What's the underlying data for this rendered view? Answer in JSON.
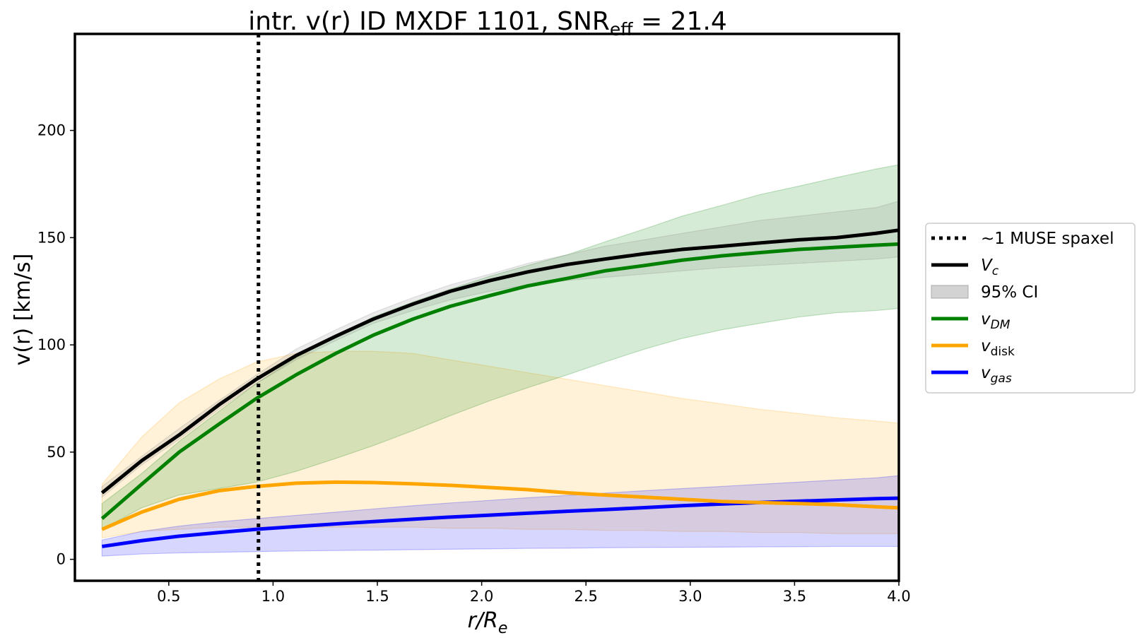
{
  "chart_data": {
    "type": "line",
    "title": {
      "main": "intr. v(r) ID MXDF 1101, SNR",
      "sub": "eff",
      "rest": " = 21.4"
    },
    "xlabel": {
      "main": "r/R",
      "sub": "e"
    },
    "ylabel": "v(r) [km/s]",
    "xlim": [
      0.05,
      4.0
    ],
    "ylim": [
      -10,
      245
    ],
    "xticks": [
      0.5,
      1.0,
      1.5,
      2.0,
      2.5,
      3.0,
      3.5,
      4.0
    ],
    "xtick_labels": [
      "0.5",
      "1.0",
      "1.5",
      "2.0",
      "2.5",
      "3.0",
      "3.5",
      "4.0"
    ],
    "yticks": [
      0,
      50,
      100,
      150,
      200
    ],
    "ytick_labels": [
      "0",
      "50",
      "100",
      "150",
      "200"
    ],
    "grid": false,
    "legend_position": "right-outside",
    "vline": {
      "x": 0.93,
      "style": "dotted",
      "color": "#000000"
    },
    "x": [
      0.18,
      0.37,
      0.55,
      0.74,
      0.92,
      1.11,
      1.3,
      1.48,
      1.67,
      1.85,
      2.04,
      2.22,
      2.41,
      2.59,
      2.78,
      2.96,
      3.15,
      3.33,
      3.52,
      3.7,
      3.89,
      4.0
    ],
    "series": [
      {
        "key": "vc",
        "name": {
          "main": "V",
          "sub": "c"
        },
        "color": "#000000",
        "values": [
          31,
          46,
          58,
          72,
          84,
          95,
          104,
          112,
          119,
          125,
          130,
          134,
          137.5,
          140,
          142.5,
          144.5,
          146,
          147.5,
          149,
          150,
          152,
          153.5
        ],
        "band_lower": [
          29,
          44,
          56,
          70,
          82,
          93,
          102,
          110,
          116,
          121,
          125,
          128,
          130,
          131.5,
          133,
          134.5,
          136,
          137,
          138,
          139,
          140,
          141
        ],
        "band_upper": [
          34,
          48,
          61,
          74,
          86,
          98,
          107,
          115,
          122,
          128,
          133,
          138,
          142,
          146,
          149,
          152,
          155,
          158,
          160,
          162,
          164,
          167
        ],
        "band_color": "#7f7f7f"
      },
      {
        "key": "vdm",
        "name": {
          "main": "v",
          "sub": "DM"
        },
        "color": "#008000",
        "values": [
          19,
          35,
          50,
          63,
          75,
          86,
          96,
          104.5,
          112,
          118,
          123,
          127.5,
          131,
          134.5,
          137,
          139.5,
          141.5,
          143,
          144.5,
          145.5,
          146.5,
          147
        ],
        "band_lower": [
          14,
          24,
          30,
          33,
          36,
          41,
          47,
          53,
          60,
          67,
          74,
          80,
          86,
          92,
          98,
          103,
          107,
          110,
          113,
          115,
          116,
          117
        ],
        "band_upper": [
          26,
          40,
          55,
          69,
          82,
          94,
          104,
          113,
          120,
          126,
          132,
          137,
          142,
          148,
          154,
          160,
          165,
          170,
          174,
          178,
          182,
          184
        ],
        "band_color": "#008000"
      },
      {
        "key": "vdisk",
        "name": {
          "main": "v",
          "sub": "disk"
        },
        "color": "#ffa500",
        "values": [
          14,
          22,
          28,
          32,
          34,
          35.5,
          36,
          35.8,
          35.2,
          34.5,
          33.5,
          32.5,
          31,
          30,
          29,
          28,
          27,
          26.5,
          26,
          25.5,
          24.5,
          24
        ],
        "band_lower": [
          10,
          13,
          14,
          15,
          15,
          15,
          15,
          15,
          15,
          14.5,
          14.5,
          14,
          14,
          13.5,
          13.5,
          13,
          13,
          12.5,
          12.5,
          12,
          12,
          12
        ],
        "band_upper": [
          35,
          57,
          73,
          84,
          92,
          96,
          97,
          97,
          96,
          93,
          90,
          87,
          84,
          81,
          78,
          75,
          72.5,
          70,
          68,
          66,
          64.5,
          63.5
        ],
        "band_color": "#ffa500"
      },
      {
        "key": "vgas",
        "name": {
          "main": "v",
          "sub": "gas"
        },
        "color": "#0000ff",
        "values": [
          6,
          8.7,
          10.8,
          12.5,
          14,
          15.3,
          16.5,
          17.6,
          18.7,
          19.7,
          20.6,
          21.5,
          22.4,
          23.2,
          24.1,
          25,
          25.8,
          26.5,
          27.1,
          27.7,
          28.3,
          28.5
        ],
        "band_lower": [
          1.5,
          2.5,
          3,
          3.3,
          3.6,
          3.9,
          4.1,
          4.3,
          4.5,
          4.7,
          4.9,
          5.1,
          5.2,
          5.4,
          5.5,
          5.6,
          5.7,
          5.8,
          5.9,
          6,
          6,
          6
        ],
        "band_upper": [
          9,
          13,
          15.5,
          17.5,
          19,
          20.5,
          22,
          23.5,
          25,
          26.3,
          27.5,
          28.7,
          29.8,
          30.9,
          32,
          33,
          34,
          35,
          36,
          37,
          38,
          39
        ],
        "band_color": "#0000ff"
      }
    ],
    "legend": [
      {
        "key": "spaxel",
        "label": "~1 MUSE spaxel",
        "kind": "dotted",
        "color": "#000000"
      },
      {
        "key": "vc",
        "label": {
          "main": "V",
          "sub": "c"
        },
        "kind": "line",
        "color": "#000000"
      },
      {
        "key": "ci",
        "label": "95% CI",
        "kind": "patch",
        "color": "#d3d3d3"
      },
      {
        "key": "vdm",
        "label": {
          "main": "v",
          "sub": "DM"
        },
        "kind": "line",
        "color": "#008000"
      },
      {
        "key": "vdisk",
        "label": {
          "main": "v",
          "sub": "disk"
        },
        "kind": "line",
        "color": "#ffa500"
      },
      {
        "key": "vgas",
        "label": {
          "main": "v",
          "sub": "gas"
        },
        "kind": "line",
        "color": "#0000ff"
      }
    ]
  }
}
